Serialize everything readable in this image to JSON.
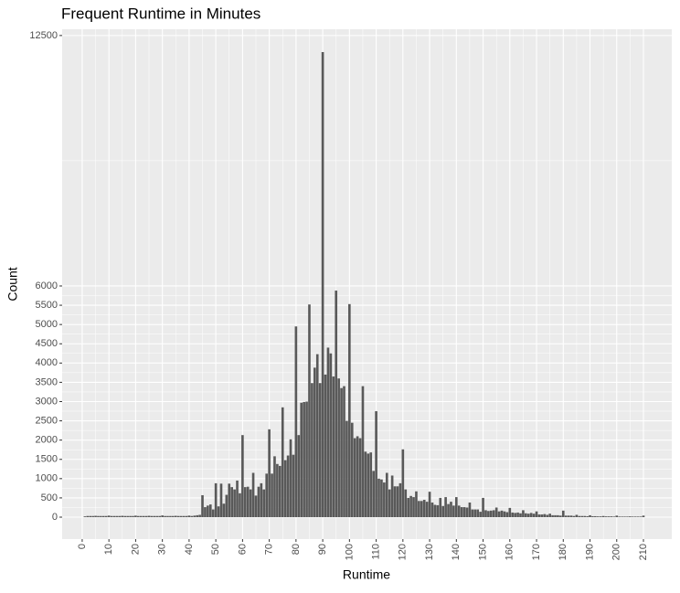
{
  "chart_data": {
    "type": "bar",
    "title": "Frequent Runtime in Minutes",
    "x_label": "Runtime",
    "y_label": "Count",
    "color": "#595959",
    "grid": true,
    "x": [
      1,
      2,
      3,
      4,
      5,
      6,
      7,
      8,
      9,
      10,
      11,
      12,
      13,
      14,
      15,
      16,
      17,
      18,
      19,
      20,
      21,
      22,
      23,
      24,
      25,
      26,
      27,
      28,
      29,
      30,
      31,
      32,
      33,
      34,
      35,
      36,
      37,
      38,
      39,
      40,
      41,
      42,
      43,
      44,
      45,
      46,
      47,
      48,
      49,
      50,
      51,
      52,
      53,
      54,
      55,
      56,
      57,
      58,
      59,
      60,
      61,
      62,
      63,
      64,
      65,
      66,
      67,
      68,
      69,
      70,
      71,
      72,
      73,
      74,
      75,
      76,
      77,
      78,
      79,
      80,
      81,
      82,
      83,
      84,
      85,
      86,
      87,
      88,
      89,
      90,
      91,
      92,
      93,
      94,
      95,
      96,
      97,
      98,
      99,
      100,
      101,
      102,
      103,
      104,
      105,
      106,
      107,
      108,
      109,
      110,
      111,
      112,
      113,
      114,
      115,
      116,
      117,
      118,
      119,
      120,
      121,
      122,
      123,
      124,
      125,
      126,
      127,
      128,
      129,
      130,
      131,
      132,
      133,
      134,
      135,
      136,
      137,
      138,
      139,
      140,
      141,
      142,
      143,
      144,
      145,
      146,
      147,
      148,
      149,
      150,
      151,
      152,
      153,
      154,
      155,
      156,
      157,
      158,
      159,
      160,
      161,
      162,
      163,
      164,
      165,
      166,
      167,
      168,
      169,
      170,
      171,
      172,
      173,
      174,
      175,
      176,
      177,
      178,
      179,
      180,
      181,
      182,
      183,
      184,
      185,
      186,
      187,
      188,
      189,
      190,
      191,
      192,
      193,
      194,
      195,
      196,
      197,
      198,
      199,
      200,
      201,
      202,
      203,
      204,
      205,
      206,
      207,
      208,
      209,
      210
    ],
    "values": [
      20,
      30,
      30,
      30,
      35,
      30,
      30,
      30,
      30,
      40,
      30,
      30,
      30,
      30,
      35,
      30,
      30,
      30,
      30,
      40,
      30,
      30,
      30,
      30,
      35,
      30,
      30,
      30,
      30,
      45,
      30,
      30,
      30,
      30,
      35,
      30,
      30,
      30,
      30,
      40,
      30,
      40,
      50,
      60,
      570,
      260,
      300,
      330,
      200,
      880,
      280,
      870,
      350,
      580,
      870,
      780,
      720,
      950,
      620,
      2130,
      780,
      790,
      720,
      1150,
      560,
      790,
      880,
      720,
      1130,
      2280,
      1130,
      1580,
      1380,
      1330,
      2850,
      1480,
      1600,
      2020,
      1620,
      4950,
      2130,
      2970,
      2990,
      3000,
      5520,
      3480,
      3880,
      4230,
      3480,
      12070,
      3700,
      4400,
      4250,
      3650,
      5880,
      3600,
      3350,
      3400,
      2500,
      5530,
      2450,
      2050,
      2100,
      2050,
      3400,
      1700,
      1650,
      1680,
      1200,
      2750,
      1000,
      980,
      900,
      1150,
      720,
      1080,
      800,
      800,
      880,
      1760,
      720,
      500,
      550,
      520,
      670,
      420,
      420,
      450,
      400,
      660,
      380,
      320,
      310,
      500,
      290,
      520,
      340,
      400,
      300,
      520,
      300,
      260,
      260,
      250,
      380,
      200,
      200,
      200,
      140,
      500,
      180,
      160,
      170,
      180,
      250,
      150,
      170,
      150,
      130,
      240,
      120,
      110,
      120,
      100,
      180,
      100,
      90,
      110,
      90,
      150,
      70,
      70,
      80,
      60,
      90,
      50,
      50,
      50,
      40,
      170,
      40,
      40,
      40,
      30,
      60,
      30,
      30,
      30,
      25,
      50,
      25,
      25,
      20,
      20,
      30,
      20,
      20,
      20,
      15,
      40,
      15,
      15,
      15,
      15,
      20,
      15,
      15,
      15,
      15,
      40
    ],
    "xlim": [
      -7.5,
      220.6
    ],
    "ylim": [
      -569,
      12663
    ],
    "xticks": [
      0,
      10,
      20,
      30,
      40,
      50,
      60,
      70,
      80,
      90,
      100,
      110,
      120,
      130,
      140,
      150,
      160,
      170,
      180,
      190,
      200,
      210
    ],
    "yticks": [
      0,
      500,
      1000,
      1500,
      2000,
      2500,
      3000,
      3500,
      4000,
      4500,
      5000,
      5500,
      6000,
      12500
    ]
  }
}
